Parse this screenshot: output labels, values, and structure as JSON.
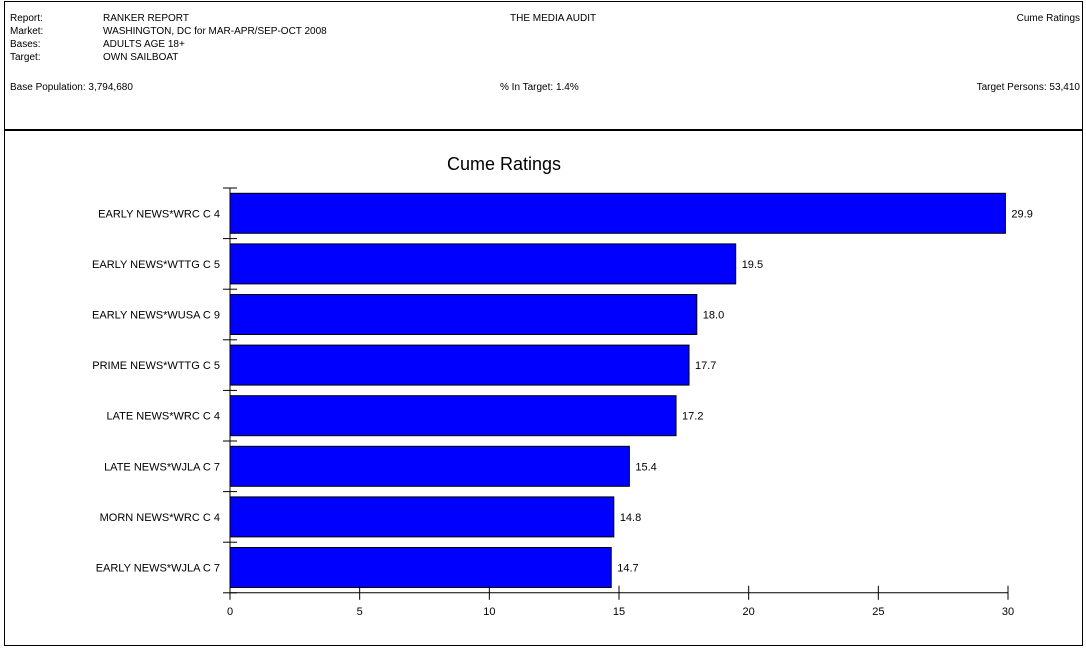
{
  "header": {
    "report_label": "Report:",
    "report_value": "RANKER REPORT",
    "market_label": "Market:",
    "market_value": "WASHINGTON, DC for MAR-APR/SEP-OCT 2008",
    "bases_label": "Bases:",
    "bases_value": "ADULTS AGE 18+",
    "target_label": "Target:",
    "target_value": "OWN SAILBOAT",
    "center_title": "THE MEDIA AUDIT",
    "right_title": "Cume Ratings",
    "base_population": "Base Population: 3,794,680",
    "pct_in_target": "% In Target: 1.4%",
    "target_persons": "Target Persons: 53,410"
  },
  "chart_data": {
    "type": "bar",
    "orientation": "horizontal",
    "title": "Cume Ratings",
    "xlabel": "",
    "ylabel": "",
    "categories": [
      "EARLY NEWS*WRC C 4",
      "EARLY NEWS*WTTG C 5",
      "EARLY NEWS*WUSA C 9",
      "PRIME NEWS*WTTG C 5",
      "LATE NEWS*WRC C 4",
      "LATE NEWS*WJLA C 7",
      "MORN NEWS*WRC C 4",
      "EARLY NEWS*WJLA C 7"
    ],
    "values": [
      29.9,
      19.5,
      18.0,
      17.7,
      17.2,
      15.4,
      14.8,
      14.7
    ],
    "value_labels": [
      "29.9",
      "19.5",
      "18.0",
      "17.7",
      "17.2",
      "15.4",
      "14.8",
      "14.7"
    ],
    "xlim": [
      0,
      30
    ],
    "xticks": [
      0,
      5,
      10,
      15,
      20,
      25,
      30
    ],
    "grid": false,
    "legend": "none",
    "bar_color": "#0000FF"
  }
}
